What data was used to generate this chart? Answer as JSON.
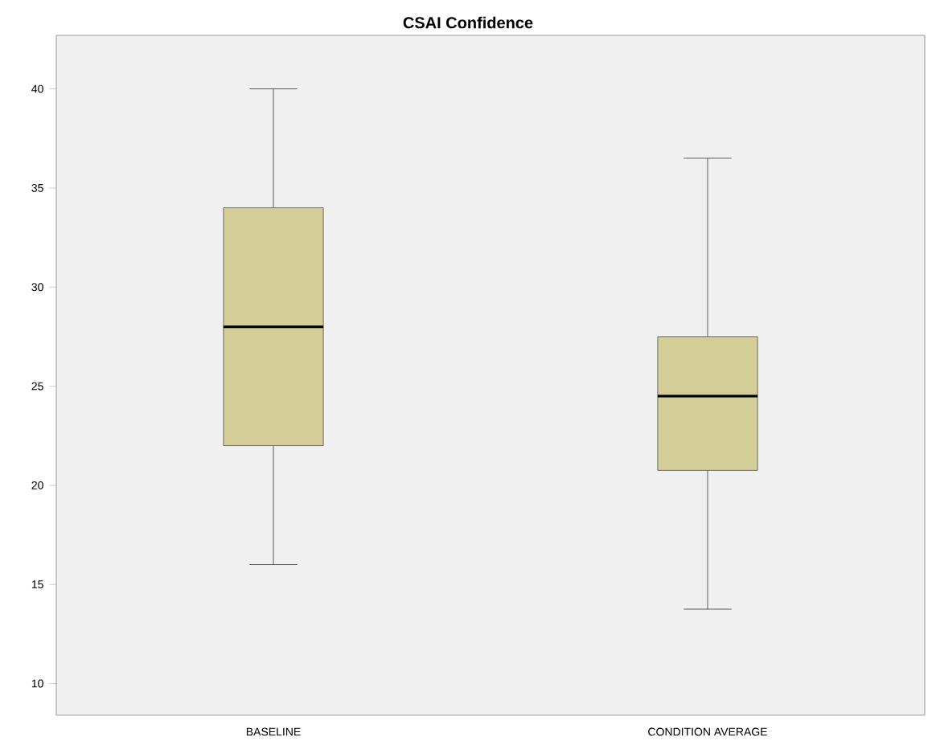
{
  "chart_data": {
    "type": "box",
    "title": "**CSAI Confidence**",
    "categories": [
      "BASELINE",
      "CONDITION AVERAGE"
    ],
    "color": "#d3ce97",
    "boxes": [
      {
        "low": 16,
        "q1": 22,
        "median": 28,
        "q3": 34,
        "high": 40
      },
      {
        "low": 13.75,
        "q1": 20.75,
        "median": 24.5,
        "q3": 27.5,
        "high": 36.5
      }
    ],
    "ylim": [
      8.4,
      42.7
    ],
    "yticks": [
      10,
      15,
      20,
      25,
      30,
      35,
      40
    ],
    "grid": false
  }
}
